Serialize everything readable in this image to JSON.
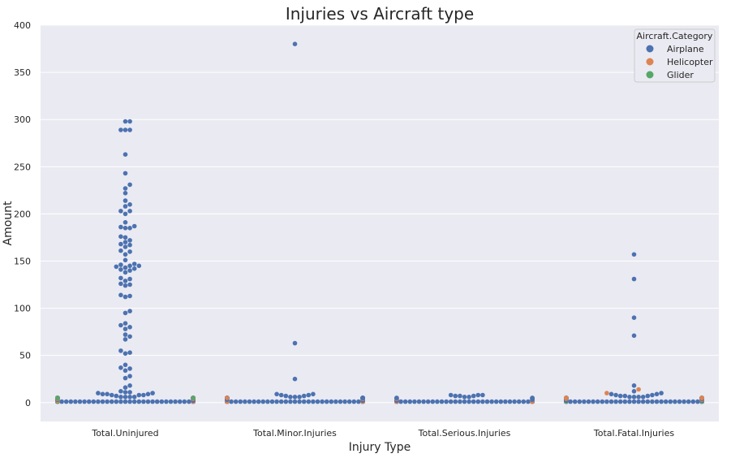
{
  "chart_data": {
    "type": "scatter",
    "style": "swarm",
    "title": "Injuries vs Aircraft type",
    "xlabel": "Injury Type",
    "ylabel": "Amount",
    "categories": [
      "Total.Uninjured",
      "Total.Minor.Injuries",
      "Total.Serious.Injuries",
      "Total.Fatal.Injuries"
    ],
    "ylim": [
      -20,
      400
    ],
    "yticks": [
      0,
      50,
      100,
      150,
      200,
      250,
      300,
      350,
      400
    ],
    "grid": true,
    "legend": {
      "title": "Aircraft.Category",
      "placement": "top-right",
      "entries": [
        "Airplane",
        "Helicopter",
        "Glider"
      ]
    },
    "colors": {
      "Airplane": "#4c72b0",
      "Helicopter": "#dd8452",
      "Glider": "#55a868",
      "plot_background": "#eaeaf2",
      "grid": "#ffffff"
    },
    "series": [
      {
        "name": "Airplane",
        "values": [
          [
            298,
            298,
            289,
            289,
            289,
            263,
            243,
            231,
            227,
            222,
            214,
            210,
            208,
            203,
            203,
            200,
            191,
            187,
            186,
            185,
            185,
            176,
            175,
            172,
            170,
            168,
            167,
            165,
            161,
            160,
            157,
            151,
            147,
            146,
            145,
            145,
            144,
            143,
            142,
            141,
            140,
            138,
            132,
            131,
            129,
            126,
            125,
            124,
            114,
            113,
            112,
            97,
            95,
            84,
            82,
            80,
            78,
            72,
            70,
            67,
            55,
            53,
            52,
            40,
            37,
            36,
            34,
            28,
            26,
            18,
            16,
            12,
            11,
            11,
            10,
            10,
            9,
            9,
            9,
            8,
            8,
            8,
            7,
            6,
            6,
            6,
            6,
            5,
            5,
            5,
            5,
            5,
            5,
            5,
            5,
            5,
            5,
            5,
            5,
            5,
            5,
            5,
            5,
            5,
            5,
            5,
            5,
            5,
            5,
            5,
            5,
            5,
            5,
            5,
            5,
            5,
            5,
            5,
            5,
            5,
            5,
            5,
            5,
            5,
            5,
            5,
            5,
            5,
            5,
            5,
            5,
            5,
            5,
            5,
            5,
            5,
            5,
            5,
            5,
            5,
            5,
            5,
            5,
            5,
            5,
            5,
            5,
            5,
            5,
            5,
            5,
            5,
            5,
            5,
            5,
            5,
            5,
            5,
            5,
            5,
            5,
            5,
            5,
            5,
            5,
            4,
            4,
            4,
            4,
            3,
            3,
            2,
            1,
            1,
            1,
            1,
            1,
            1,
            1,
            1,
            1,
            1,
            1,
            1,
            1,
            1,
            1,
            1,
            1,
            1,
            1,
            1,
            1,
            1,
            1,
            1,
            1,
            1,
            1,
            1,
            1,
            1,
            1,
            1,
            1,
            1,
            1,
            1,
            1,
            1,
            1,
            1,
            1,
            1,
            1,
            1,
            1,
            1,
            1,
            1,
            1,
            1,
            1,
            1,
            1,
            1,
            1,
            1,
            1,
            1,
            1,
            1,
            1,
            1,
            1,
            1,
            1,
            1,
            1,
            1,
            1,
            1,
            1,
            1,
            1,
            1,
            1,
            1,
            1,
            1,
            1,
            1,
            1,
            1,
            1,
            1,
            1,
            1,
            1,
            1,
            1,
            1,
            1,
            1,
            1,
            1,
            1,
            1,
            1,
            1,
            1,
            1,
            1,
            1,
            1,
            1,
            1,
            1,
            1,
            1,
            1,
            1,
            1
          ],
          [
            380,
            63,
            25,
            9,
            9,
            8,
            8,
            7,
            7,
            6,
            6,
            6,
            5,
            5,
            5,
            5,
            5,
            5,
            5,
            5,
            5,
            5,
            5,
            5,
            5,
            5,
            5,
            5,
            5,
            5,
            5,
            5,
            5,
            5,
            5,
            5,
            5,
            5,
            5,
            5,
            5,
            5,
            5,
            5,
            4,
            4,
            4,
            4,
            3,
            3,
            2,
            2,
            1,
            1,
            1,
            1,
            1,
            1,
            1,
            1,
            1,
            1,
            1,
            1,
            1,
            1,
            1,
            1,
            1,
            1,
            1,
            1,
            1,
            1,
            1,
            1,
            1,
            1,
            1,
            1,
            1,
            1,
            1,
            1,
            1,
            1,
            1,
            1,
            1,
            1,
            1,
            1,
            1,
            1,
            1,
            1,
            1,
            1,
            1,
            1,
            1,
            1,
            1,
            1,
            1,
            1,
            1,
            1,
            1,
            1,
            1,
            1,
            1,
            1,
            1,
            1,
            1,
            1,
            1,
            1,
            1,
            1,
            1,
            1,
            1,
            1,
            1,
            1,
            1,
            1,
            1,
            1,
            1,
            1,
            1,
            1,
            1,
            1,
            1,
            1,
            1,
            1,
            1,
            1
          ],
          [
            8,
            8,
            8,
            7,
            7,
            7,
            6,
            6,
            5,
            5,
            5,
            5,
            4,
            4,
            4,
            3,
            3,
            3,
            2,
            2,
            2,
            2,
            1,
            1,
            1,
            1,
            1,
            1,
            1,
            1,
            1,
            1,
            1,
            1,
            1,
            1,
            1,
            1,
            1,
            1,
            1,
            1,
            1,
            1,
            1,
            1,
            1,
            1,
            1,
            1,
            1,
            1,
            1,
            1,
            1,
            1,
            1,
            1,
            1,
            1,
            1,
            1,
            1,
            1,
            1,
            1,
            1,
            1,
            1,
            1,
            1,
            1,
            1,
            1,
            1,
            1,
            1,
            1,
            1,
            1,
            1,
            1,
            1,
            1,
            1,
            1,
            1,
            1,
            1,
            1,
            1,
            1,
            1,
            1,
            1,
            1,
            1,
            1,
            1,
            1,
            1,
            1,
            1,
            1,
            1,
            1,
            1,
            1,
            1,
            1,
            1,
            1,
            1,
            1,
            1,
            1,
            1,
            1,
            1,
            1
          ],
          [
            157,
            131,
            90,
            71,
            18,
            12,
            10,
            9,
            9,
            8,
            8,
            7,
            7,
            7,
            6,
            6,
            6,
            6,
            5,
            5,
            5,
            5,
            5,
            5,
            5,
            5,
            5,
            5,
            5,
            5,
            5,
            5,
            5,
            5,
            5,
            5,
            5,
            5,
            5,
            5,
            5,
            5,
            5,
            5,
            5,
            5,
            5,
            5,
            5,
            5,
            5,
            5,
            5,
            5,
            5,
            5,
            5,
            5,
            5,
            5,
            5,
            5,
            5,
            5,
            5,
            5,
            5,
            5,
            5,
            5,
            5,
            5,
            5,
            5,
            5,
            4,
            4,
            4,
            4,
            3,
            3,
            3,
            2,
            2,
            1,
            1,
            1,
            1,
            1,
            1,
            1,
            1,
            1,
            1,
            1,
            1,
            1,
            1,
            1,
            1,
            1,
            1,
            1,
            1,
            1,
            1,
            1,
            1,
            1,
            1,
            1,
            1,
            1,
            1,
            1,
            1,
            1,
            1,
            1,
            1,
            1,
            1,
            1,
            1,
            1,
            1,
            1,
            1,
            1,
            1,
            1,
            1,
            1,
            1,
            1,
            1,
            1,
            1,
            1,
            1,
            1,
            1,
            1,
            1,
            1,
            1,
            1,
            1,
            1,
            1,
            1,
            1,
            1,
            1,
            1,
            1,
            1,
            1,
            1,
            1,
            1,
            1,
            1,
            1,
            1,
            1,
            1,
            1,
            1,
            1,
            1,
            1,
            1,
            1,
            1,
            1,
            1,
            1,
            1,
            1,
            1,
            1,
            1,
            1,
            1,
            1,
            1,
            1,
            1,
            1,
            1,
            1,
            1,
            1,
            1,
            1,
            1,
            1,
            1,
            1
          ]
        ]
      },
      {
        "name": "Helicopter",
        "values": [
          [
            5,
            5,
            5,
            5,
            5,
            5,
            4,
            4,
            2,
            1,
            1,
            1
          ],
          [
            5,
            4,
            2,
            1,
            1,
            1,
            1
          ],
          [
            4,
            2,
            1,
            1,
            1,
            1,
            1
          ],
          [
            14,
            10,
            5,
            5,
            5,
            5,
            5,
            5,
            5,
            4,
            3,
            1,
            1,
            1,
            1
          ]
        ]
      },
      {
        "name": "Glider",
        "values": [
          [
            5,
            5,
            1
          ],
          [],
          [],
          [
            1,
            1
          ]
        ]
      }
    ]
  }
}
